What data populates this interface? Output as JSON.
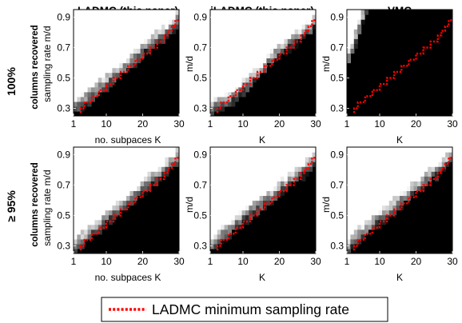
{
  "chart_data": [
    {
      "type": "heatmap",
      "title": "LADMC (this paper)",
      "row_label": "100%",
      "row_sublabel": "columns recovered",
      "xlabel": "no. subpaces K",
      "ylabel": "sampling rate  m/d",
      "x_ticks": [
        "1",
        "10",
        "20",
        "30"
      ],
      "y_ticks": [
        "0.9",
        "0.7",
        "0.5",
        "0.3"
      ],
      "xlim": [
        1,
        30
      ],
      "ylim": [
        0.25,
        0.95
      ],
      "colormap": "gray",
      "boundary": [
        [
          1,
          0.25
        ],
        [
          3,
          0.29
        ],
        [
          5,
          0.33
        ],
        [
          7,
          0.37
        ],
        [
          9,
          0.41
        ],
        [
          11,
          0.45
        ],
        [
          13,
          0.49
        ],
        [
          15,
          0.53
        ],
        [
          17,
          0.57
        ],
        [
          19,
          0.61
        ],
        [
          21,
          0.66
        ],
        [
          23,
          0.7
        ],
        [
          25,
          0.73
        ],
        [
          27,
          0.76
        ],
        [
          28,
          0.79
        ],
        [
          29,
          0.82
        ],
        [
          30,
          0.86
        ],
        [
          30,
          0.95
        ]
      ],
      "red_line": [
        [
          3,
          0.27
        ],
        [
          4,
          0.3
        ],
        [
          6,
          0.34
        ],
        [
          8,
          0.38
        ],
        [
          10,
          0.42
        ],
        [
          12,
          0.46
        ],
        [
          14,
          0.5
        ],
        [
          16,
          0.54
        ],
        [
          18,
          0.58
        ],
        [
          20,
          0.62
        ],
        [
          22,
          0.66
        ],
        [
          24,
          0.7
        ],
        [
          26,
          0.74
        ],
        [
          27,
          0.78
        ],
        [
          28,
          0.81
        ],
        [
          29,
          0.84
        ],
        [
          30,
          0.88
        ]
      ]
    },
    {
      "type": "heatmap",
      "title": "iLADMC (this paper)",
      "xlabel": "K",
      "ylabel": "m/d",
      "x_ticks": [
        "1",
        "10",
        "20",
        "30"
      ],
      "y_ticks": [
        "0.9",
        "0.7",
        "0.5",
        "0.3"
      ],
      "xlim": [
        1,
        30
      ],
      "ylim": [
        0.25,
        0.95
      ],
      "colormap": "gray",
      "boundary": [
        [
          1,
          0.25
        ],
        [
          3,
          0.28
        ],
        [
          5,
          0.3
        ],
        [
          7,
          0.33
        ],
        [
          9,
          0.37
        ],
        [
          11,
          0.41
        ],
        [
          13,
          0.46
        ],
        [
          15,
          0.51
        ],
        [
          17,
          0.57
        ],
        [
          19,
          0.61
        ],
        [
          21,
          0.65
        ],
        [
          23,
          0.69
        ],
        [
          25,
          0.72
        ],
        [
          27,
          0.76
        ],
        [
          29,
          0.8
        ],
        [
          30,
          0.83
        ],
        [
          30,
          0.95
        ]
      ],
      "red_line": [
        [
          3,
          0.27
        ],
        [
          4,
          0.3
        ],
        [
          6,
          0.34
        ],
        [
          8,
          0.38
        ],
        [
          10,
          0.42
        ],
        [
          12,
          0.46
        ],
        [
          14,
          0.5
        ],
        [
          16,
          0.54
        ],
        [
          18,
          0.58
        ],
        [
          20,
          0.62
        ],
        [
          22,
          0.66
        ],
        [
          24,
          0.7
        ],
        [
          26,
          0.74
        ],
        [
          27,
          0.78
        ],
        [
          28,
          0.81
        ],
        [
          29,
          0.84
        ],
        [
          30,
          0.88
        ]
      ]
    },
    {
      "type": "heatmap",
      "title": "VMC",
      "xlabel": "K",
      "ylabel": "m/d",
      "x_ticks": [
        "1",
        "10",
        "20",
        "30"
      ],
      "y_ticks": [
        "0.9",
        "0.7",
        "0.5",
        "0.3"
      ],
      "xlim": [
        1,
        30
      ],
      "ylim": [
        0.25,
        0.95
      ],
      "colormap": "gray",
      "boundary": [
        [
          1,
          0.55
        ],
        [
          2,
          0.62
        ],
        [
          3,
          0.69
        ],
        [
          4,
          0.76
        ],
        [
          5,
          0.83
        ],
        [
          6,
          0.9
        ],
        [
          7,
          0.95
        ]
      ],
      "red_line": [
        [
          3,
          0.27
        ],
        [
          4,
          0.3
        ],
        [
          6,
          0.34
        ],
        [
          8,
          0.38
        ],
        [
          10,
          0.42
        ],
        [
          12,
          0.46
        ],
        [
          14,
          0.5
        ],
        [
          16,
          0.54
        ],
        [
          18,
          0.58
        ],
        [
          20,
          0.62
        ],
        [
          22,
          0.66
        ],
        [
          24,
          0.7
        ],
        [
          26,
          0.74
        ],
        [
          27,
          0.78
        ],
        [
          28,
          0.81
        ],
        [
          29,
          0.84
        ],
        [
          30,
          0.88
        ]
      ]
    },
    {
      "type": "heatmap",
      "title": "",
      "row_label": "≥ 95%",
      "row_sublabel": "columns recovered",
      "xlabel": "no. subpaces K",
      "ylabel": "sampling rate  m/d",
      "x_ticks": [
        "1",
        "10",
        "20",
        "30"
      ],
      "y_ticks": [
        "0.9",
        "0.7",
        "0.5",
        "0.3"
      ],
      "xlim": [
        1,
        30
      ],
      "ylim": [
        0.25,
        0.95
      ],
      "colormap": "gray",
      "boundary": [
        [
          1,
          0.25
        ],
        [
          3,
          0.29
        ],
        [
          5,
          0.33
        ],
        [
          7,
          0.37
        ],
        [
          9,
          0.41
        ],
        [
          11,
          0.46
        ],
        [
          13,
          0.5
        ],
        [
          15,
          0.54
        ],
        [
          17,
          0.58
        ],
        [
          19,
          0.62
        ],
        [
          21,
          0.66
        ],
        [
          23,
          0.7
        ],
        [
          25,
          0.74
        ],
        [
          27,
          0.78
        ],
        [
          29,
          0.82
        ],
        [
          30,
          0.86
        ],
        [
          30,
          0.95
        ]
      ],
      "red_line": [
        [
          3,
          0.27
        ],
        [
          4,
          0.3
        ],
        [
          6,
          0.34
        ],
        [
          8,
          0.38
        ],
        [
          10,
          0.42
        ],
        [
          12,
          0.46
        ],
        [
          14,
          0.5
        ],
        [
          16,
          0.54
        ],
        [
          18,
          0.58
        ],
        [
          20,
          0.62
        ],
        [
          22,
          0.66
        ],
        [
          24,
          0.7
        ],
        [
          26,
          0.74
        ],
        [
          27,
          0.78
        ],
        [
          28,
          0.81
        ],
        [
          29,
          0.84
        ],
        [
          30,
          0.88
        ]
      ]
    },
    {
      "type": "heatmap",
      "title": "",
      "xlabel": "K",
      "ylabel": "m/d",
      "x_ticks": [
        "1",
        "10",
        "20",
        "30"
      ],
      "y_ticks": [
        "0.9",
        "0.7",
        "0.5",
        "0.3"
      ],
      "xlim": [
        1,
        30
      ],
      "ylim": [
        0.25,
        0.95
      ],
      "colormap": "gray",
      "boundary": [
        [
          1,
          0.25
        ],
        [
          3,
          0.3
        ],
        [
          5,
          0.34
        ],
        [
          7,
          0.38
        ],
        [
          9,
          0.42
        ],
        [
          11,
          0.46
        ],
        [
          13,
          0.5
        ],
        [
          15,
          0.53
        ],
        [
          17,
          0.57
        ],
        [
          19,
          0.61
        ],
        [
          21,
          0.65
        ],
        [
          23,
          0.68
        ],
        [
          25,
          0.72
        ],
        [
          27,
          0.76
        ],
        [
          29,
          0.8
        ],
        [
          30,
          0.84
        ],
        [
          30,
          0.95
        ]
      ],
      "red_line": [
        [
          3,
          0.27
        ],
        [
          4,
          0.3
        ],
        [
          6,
          0.34
        ],
        [
          8,
          0.38
        ],
        [
          10,
          0.42
        ],
        [
          12,
          0.46
        ],
        [
          14,
          0.5
        ],
        [
          16,
          0.54
        ],
        [
          18,
          0.58
        ],
        [
          20,
          0.62
        ],
        [
          22,
          0.66
        ],
        [
          24,
          0.7
        ],
        [
          26,
          0.74
        ],
        [
          27,
          0.78
        ],
        [
          28,
          0.81
        ],
        [
          29,
          0.84
        ],
        [
          30,
          0.88
        ]
      ]
    },
    {
      "type": "heatmap",
      "title": "",
      "xlabel": "K",
      "ylabel": "m/d",
      "x_ticks": [
        "1",
        "10",
        "20",
        "30"
      ],
      "y_ticks": [
        "0.9",
        "0.7",
        "0.5",
        "0.3"
      ],
      "xlim": [
        1,
        30
      ],
      "ylim": [
        0.25,
        0.95
      ],
      "colormap": "gray",
      "boundary": [
        [
          1,
          0.25
        ],
        [
          3,
          0.3
        ],
        [
          5,
          0.34
        ],
        [
          7,
          0.38
        ],
        [
          9,
          0.42
        ],
        [
          11,
          0.46
        ],
        [
          13,
          0.5
        ],
        [
          15,
          0.54
        ],
        [
          17,
          0.58
        ],
        [
          19,
          0.62
        ],
        [
          21,
          0.66
        ],
        [
          23,
          0.7
        ],
        [
          25,
          0.74
        ],
        [
          27,
          0.78
        ],
        [
          29,
          0.82
        ],
        [
          30,
          0.86
        ],
        [
          30,
          0.95
        ]
      ],
      "red_line": [
        [
          3,
          0.27
        ],
        [
          4,
          0.3
        ],
        [
          6,
          0.34
        ],
        [
          8,
          0.38
        ],
        [
          10,
          0.42
        ],
        [
          12,
          0.46
        ],
        [
          14,
          0.5
        ],
        [
          16,
          0.54
        ],
        [
          18,
          0.58
        ],
        [
          20,
          0.62
        ],
        [
          22,
          0.66
        ],
        [
          24,
          0.7
        ],
        [
          26,
          0.74
        ],
        [
          27,
          0.78
        ],
        [
          28,
          0.81
        ],
        [
          29,
          0.84
        ],
        [
          30,
          0.88
        ]
      ]
    }
  ],
  "legend": {
    "label": "LADMC minimum sampling rate",
    "color": "#ff0000",
    "style": "dotted"
  },
  "colors": {
    "background": "#000000",
    "foreground": "#ffffff",
    "boundary_line": "#ff0000"
  }
}
